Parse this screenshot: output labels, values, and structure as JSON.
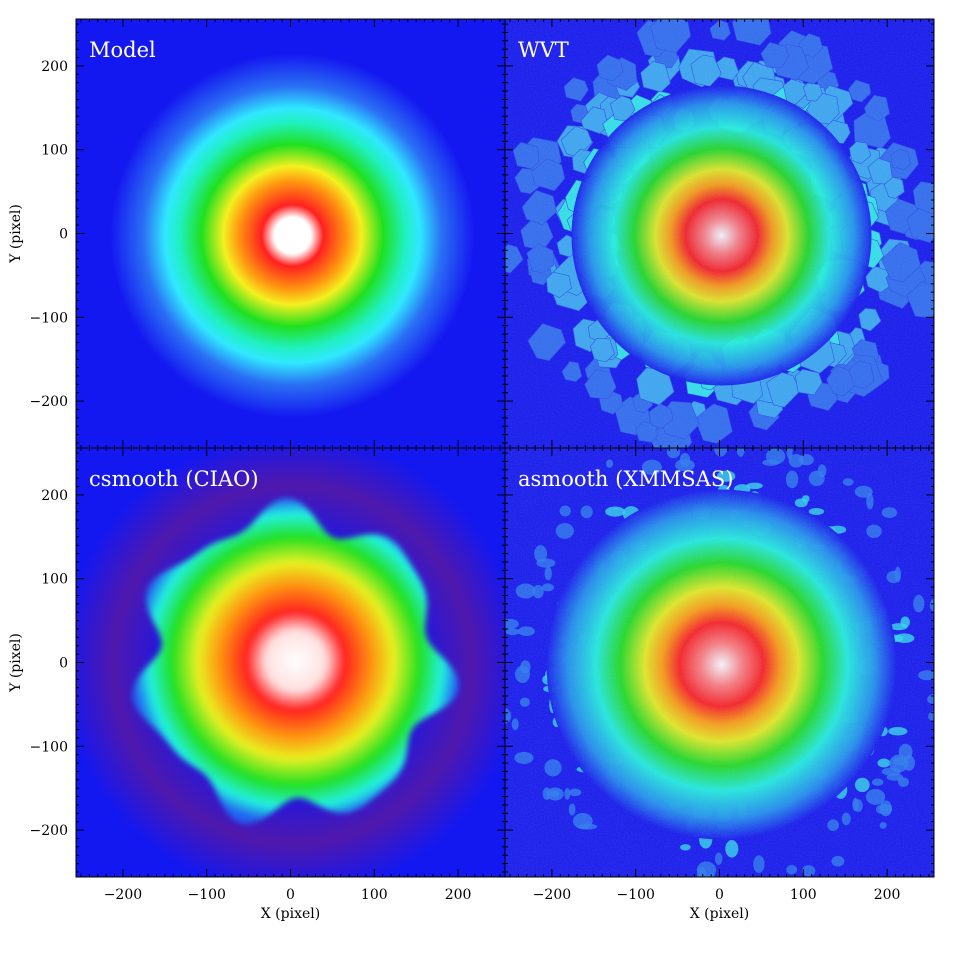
{
  "figure": {
    "panels": [
      {
        "id": "model",
        "title": "Model",
        "style": "smooth"
      },
      {
        "id": "wvt",
        "title": "WVT",
        "style": "cells"
      },
      {
        "id": "csmooth",
        "title": "csmooth (CIAO)",
        "style": "csmooth"
      },
      {
        "id": "asmooth",
        "title": "asmooth (XMMSAS)",
        "style": "noisy"
      }
    ],
    "x_axis_label": "X (pixel)",
    "y_axis_label": "Y (pixel)",
    "x_ticks": [
      "−200",
      "−100",
      "0",
      "100",
      "200"
    ],
    "y_ticks": [
      "200",
      "100",
      "0",
      "−100",
      "−200"
    ],
    "x_tick_values": [
      -200,
      -100,
      0,
      100,
      200
    ],
    "y_tick_values": [
      200,
      100,
      0,
      -100,
      -200
    ],
    "axis_range": [
      -256,
      256
    ],
    "colors": {
      "background": "#1418f0",
      "cyan": "#20f0f0",
      "green": "#20e820",
      "yellow": "#f0f020",
      "red": "#f01818",
      "white": "#ffffff",
      "csmooth_halo": "#5a18a0"
    }
  }
}
